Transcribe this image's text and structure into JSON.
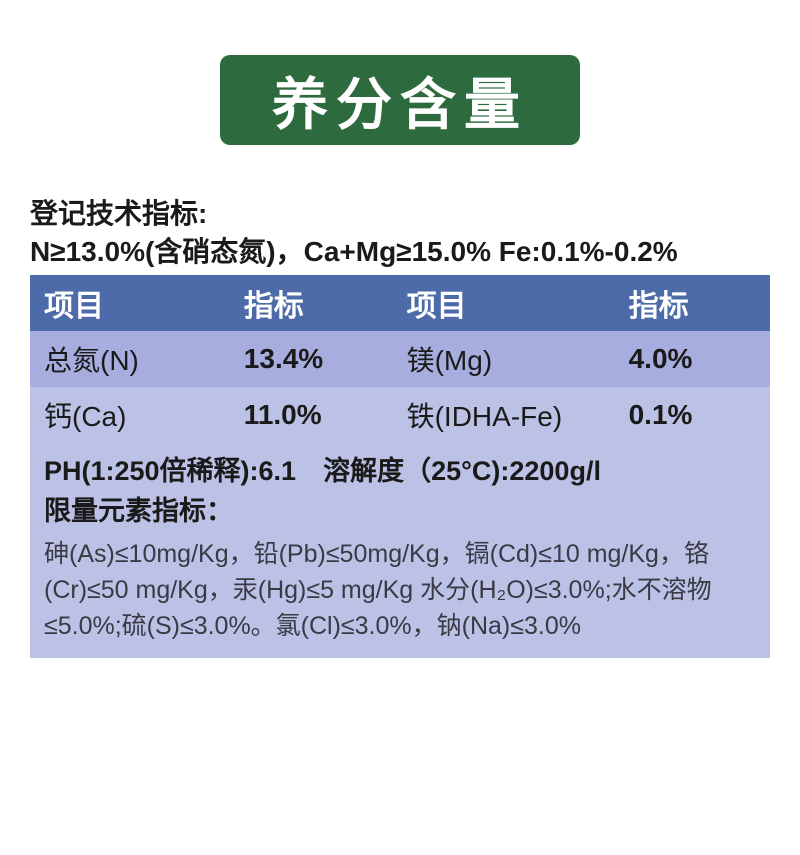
{
  "title": "养分含量",
  "spec_heading_line1": "登记技术指标:",
  "spec_heading_line2": "N≥13.0%(含硝态氮)，Ca+Mg≥15.0% Fe:0.1%-0.2%",
  "table": {
    "headers": [
      "项目",
      "指标",
      "项目",
      "指标"
    ],
    "rows": [
      {
        "item1": "总氮(N)",
        "val1": "13.4%",
        "item2": "镁(Mg)",
        "val2": "4.0%"
      },
      {
        "item1": "钙(Ca)",
        "val1": "11.0%",
        "item2": "铁(IDHA-Fe)",
        "val2": "0.1%"
      }
    ]
  },
  "ph_line": "PH(1:250倍稀释):6.1 溶解度（25°C):2200g/l",
  "limit_heading": "限量元素指标：",
  "limit_body": "砷(As)≤10mg/Kg，铅(Pb)≤50mg/Kg，镉(Cd)≤10 mg/Kg，铬(Cr)≤50 mg/Kg，汞(Hg)≤5 mg/Kg 水分(H₂O)≤3.0%;水不溶物≤5.0%;硫(S)≤3.0%。氯(Cl)≤3.0%，钠(Na)≤3.0%",
  "colors": {
    "badge_bg": "#2d6b3f",
    "header_bg": "#4d6ba8",
    "row_bg": "#a7adde",
    "row_alt_bg": "#bcc2e6",
    "text": "#1a1a1a",
    "body_text": "#3a3a45"
  }
}
